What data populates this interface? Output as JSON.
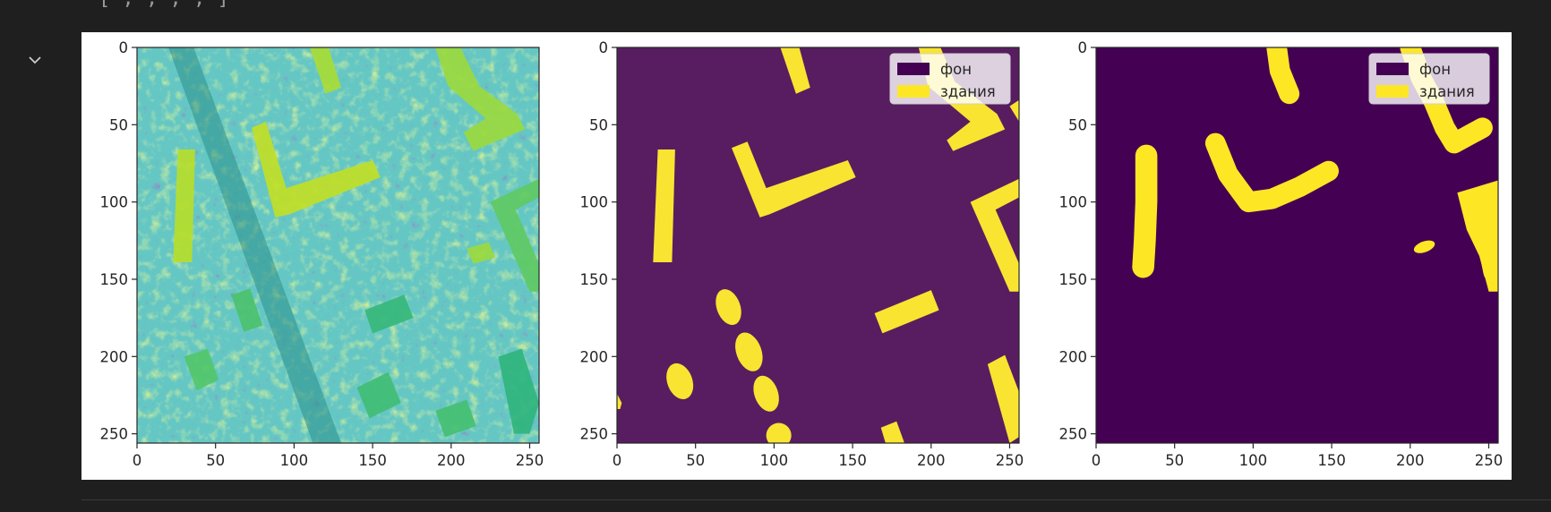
{
  "cell": {
    "previous_output_text": "[ , , , , ]",
    "toggle_icon": "chevron-down-icon"
  },
  "colors": {
    "background": "#1f1f1f",
    "viridis_low": "#440154",
    "viridis_high": "#fde725",
    "mask_bg_alpha": "#581d60",
    "mask_fg_alpha": "#f9e431"
  },
  "chart_data": [
    {
      "type": "heatmap",
      "name": "image",
      "title": "",
      "xlabel": "",
      "ylabel": "",
      "colormap": "viridis",
      "xlim": [
        0,
        256
      ],
      "ylim": [
        256,
        0
      ],
      "x_ticks": [
        0,
        50,
        100,
        150,
        200,
        250
      ],
      "y_ticks": [
        0,
        50,
        100,
        150,
        200,
        250
      ],
      "legend": null
    },
    {
      "type": "heatmap",
      "name": "ground-truth-mask",
      "title": "",
      "xlabel": "",
      "ylabel": "",
      "colormap": "viridis",
      "xlim": [
        0,
        256
      ],
      "ylim": [
        256,
        0
      ],
      "x_ticks": [
        0,
        50,
        100,
        150,
        200,
        250
      ],
      "y_ticks": [
        0,
        50,
        100,
        150,
        200,
        250
      ],
      "legend": {
        "placement": "top-right",
        "entries": [
          {
            "label": "фон",
            "color": "#440154"
          },
          {
            "label": "здания",
            "color": "#fde725"
          }
        ]
      },
      "buildings": [
        {
          "kind": "poly",
          "points": [
            [
              104,
              0
            ],
            [
              116,
              0
            ],
            [
              123,
              26
            ],
            [
              114,
              30
            ]
          ]
        },
        {
          "kind": "poly",
          "points": [
            [
              26,
              66
            ],
            [
              37,
              66
            ],
            [
              35,
              139
            ],
            [
              23,
              139
            ]
          ]
        },
        {
          "kind": "poly",
          "points": [
            [
              73,
              65
            ],
            [
              83,
              61
            ],
            [
              95,
              91
            ],
            [
              147,
              73
            ],
            [
              152,
              84
            ],
            [
              97,
              108
            ],
            [
              91,
              110
            ]
          ]
        },
        {
          "kind": "poly",
          "points": [
            [
              192,
              0
            ],
            [
              206,
              0
            ],
            [
              215,
              22
            ],
            [
              242,
              43
            ],
            [
              247,
              53
            ],
            [
              214,
              67
            ],
            [
              210,
              60
            ],
            [
              225,
              48
            ],
            [
              198,
              25
            ]
          ]
        },
        {
          "kind": "poly",
          "points": [
            [
              250,
              38
            ],
            [
              256,
              34
            ],
            [
              256,
              48
            ]
          ]
        },
        {
          "kind": "poly",
          "points": [
            [
              225,
              100
            ],
            [
              256,
              85
            ],
            [
              256,
              97
            ],
            [
              241,
              105
            ],
            [
              256,
              140
            ],
            [
              256,
              158
            ],
            [
              250,
              158
            ]
          ]
        },
        {
          "kind": "poly",
          "points": [
            [
              164,
              172
            ],
            [
              200,
              157
            ],
            [
              205,
              170
            ],
            [
              169,
              185
            ]
          ]
        },
        {
          "kind": "poly",
          "points": [
            [
              236,
              205
            ],
            [
              247,
              199
            ],
            [
              256,
              223
            ],
            [
              256,
              252
            ],
            [
              250,
              256
            ]
          ]
        },
        {
          "kind": "poly",
          "points": [
            [
              168,
              246
            ],
            [
              178,
              242
            ],
            [
              183,
              256
            ],
            [
              171,
              256
            ]
          ]
        },
        {
          "kind": "ellipse",
          "cx": 71,
          "cy": 168,
          "rx": 7.5,
          "ry": 12,
          "rot": -20
        },
        {
          "kind": "ellipse",
          "cx": 84,
          "cy": 197,
          "rx": 8,
          "ry": 13,
          "rot": -20
        },
        {
          "kind": "ellipse",
          "cx": 95,
          "cy": 224,
          "rx": 7.5,
          "ry": 12,
          "rot": -20
        },
        {
          "kind": "ellipse",
          "cx": 40,
          "cy": 216,
          "rx": 8,
          "ry": 12,
          "rot": -20
        },
        {
          "kind": "ellipse",
          "cx": 103,
          "cy": 251,
          "rx": 8,
          "ry": 8,
          "rot": 0
        },
        {
          "kind": "poly",
          "points": [
            [
              0,
              224
            ],
            [
              3,
              230
            ],
            [
              2,
              234
            ],
            [
              0,
              234
            ]
          ]
        }
      ]
    },
    {
      "type": "heatmap",
      "name": "predicted-mask",
      "title": "",
      "xlabel": "",
      "ylabel": "",
      "colormap": "viridis",
      "xlim": [
        0,
        256
      ],
      "ylim": [
        256,
        0
      ],
      "x_ticks": [
        0,
        50,
        100,
        150,
        200,
        250
      ],
      "y_ticks": [
        0,
        50,
        100,
        150,
        200,
        250
      ],
      "legend": {
        "placement": "top-right",
        "entries": [
          {
            "label": "фон",
            "color": "#440154"
          },
          {
            "label": "здания",
            "color": "#fde725"
          }
        ]
      },
      "buildings": [
        {
          "kind": "stroke",
          "width": 13,
          "points": [
            [
              115,
              0
            ],
            [
              117,
              15
            ],
            [
              123,
              30
            ]
          ]
        },
        {
          "kind": "stroke",
          "width": 14,
          "points": [
            [
              32,
              70
            ],
            [
              32,
              100
            ],
            [
              31,
              125
            ],
            [
              30,
              142
            ]
          ]
        },
        {
          "kind": "stroke",
          "width": 13,
          "points": [
            [
              76,
              62
            ],
            [
              84,
              82
            ],
            [
              97,
              100
            ],
            [
              112,
              98
            ],
            [
              130,
              90
            ],
            [
              148,
              80
            ]
          ]
        },
        {
          "kind": "stroke",
          "width": 13,
          "points": [
            [
              200,
              0
            ],
            [
              207,
              20
            ],
            [
              215,
              35
            ],
            [
              222,
              52
            ],
            [
              228,
              62
            ],
            [
              246,
              52
            ]
          ]
        },
        {
          "kind": "stroke",
          "width": 15,
          "points": [
            [
              240,
              100
            ],
            [
              248,
              107
            ],
            [
              250,
              125
            ],
            [
              254,
              145
            ]
          ]
        },
        {
          "kind": "poly",
          "points": [
            [
              230,
              94
            ],
            [
              256,
              86
            ],
            [
              256,
              158
            ],
            [
              250,
              158
            ],
            [
              244,
              135
            ],
            [
              236,
              118
            ]
          ]
        },
        {
          "kind": "ellipse",
          "cx": 209,
          "cy": 129,
          "rx": 7,
          "ry": 3.5,
          "rot": -20
        }
      ]
    }
  ]
}
